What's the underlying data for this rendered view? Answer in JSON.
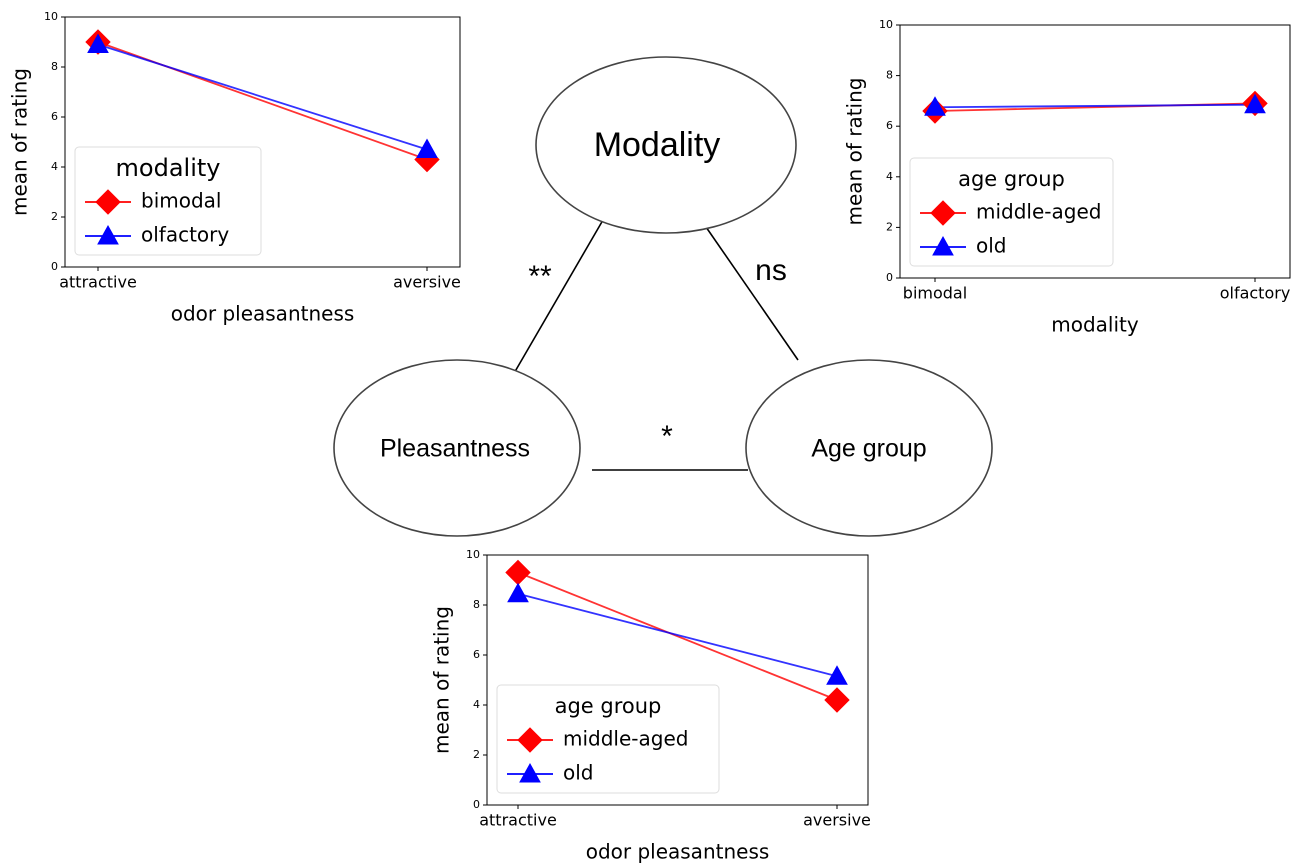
{
  "chart_data": [
    {
      "type": "line",
      "categories": [
        "attractive",
        "aversive"
      ],
      "xlabel": "odor pleasantness",
      "ylabel": "mean of rating",
      "ylim": [
        0,
        10
      ],
      "yticks": [
        0,
        2,
        4,
        6,
        8,
        10
      ],
      "legend_title": "modality",
      "legend": "lower left",
      "series": [
        {
          "name": "bimodal",
          "color": "#ff0000",
          "marker": "diamond",
          "values": [
            9.0,
            4.3
          ]
        },
        {
          "name": "olfactory",
          "color": "#0000ff",
          "marker": "triangle",
          "values": [
            8.9,
            4.7
          ]
        }
      ]
    },
    {
      "type": "line",
      "categories": [
        "bimodal",
        "olfactory"
      ],
      "xlabel": "modality",
      "ylabel": "mean of rating",
      "ylim": [
        0,
        10
      ],
      "yticks": [
        0,
        2,
        4,
        6,
        8,
        10
      ],
      "legend_title": "age group",
      "legend": "lower left",
      "series": [
        {
          "name": "middle-aged",
          "color": "#ff0000",
          "marker": "diamond",
          "values": [
            6.6,
            6.9
          ]
        },
        {
          "name": "old",
          "color": "#0000ff",
          "marker": "triangle",
          "values": [
            6.75,
            6.85
          ]
        }
      ]
    },
    {
      "type": "line",
      "categories": [
        "attractive",
        "aversive"
      ],
      "xlabel": "odor pleasantness",
      "ylabel": "mean of rating",
      "ylim": [
        0,
        10
      ],
      "yticks": [
        0,
        2,
        4,
        6,
        8,
        10
      ],
      "legend_title": "age group",
      "legend": "lower left",
      "series": [
        {
          "name": "middle-aged",
          "color": "#ff0000",
          "marker": "diamond",
          "values": [
            9.3,
            4.2
          ]
        },
        {
          "name": "old",
          "color": "#0000ff",
          "marker": "triangle",
          "values": [
            8.45,
            5.15
          ]
        }
      ]
    }
  ],
  "diagram": {
    "nodes": [
      {
        "label": "Modality"
      },
      {
        "label": "Pleasantness"
      },
      {
        "label": "Age group"
      }
    ],
    "edges": [
      {
        "label": "**"
      },
      {
        "label": "ns"
      },
      {
        "label": "*"
      }
    ]
  }
}
